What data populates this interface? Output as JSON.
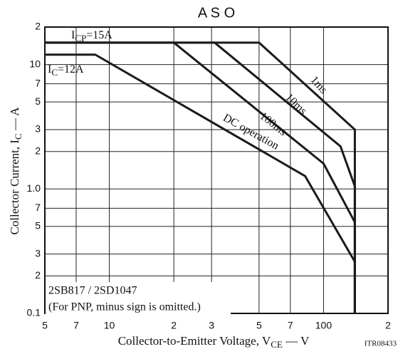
{
  "chart_data": {
    "type": "line",
    "title": "A S O",
    "x_label": [
      "Collector-to-Emitter Voltage, V",
      "CE",
      " — V"
    ],
    "y_label": [
      "Collector Current, I",
      "C",
      " — A"
    ],
    "code": "ITR08433",
    "icp_label": [
      "I",
      "CP",
      "=15A"
    ],
    "ic_label": [
      "I",
      "C",
      "=12A"
    ],
    "notes": [
      "2SB817 / 2SD1047",
      "(For PNP, minus sign is omitted.)"
    ],
    "log_x": true,
    "log_y": true,
    "grid": true,
    "color": "#1a1a1a",
    "xlim": [
      5,
      200
    ],
    "ylim": [
      0.1,
      20
    ],
    "xticks": [
      5,
      7,
      10,
      {
        "value": 20,
        "label": "2"
      },
      {
        "value": 30,
        "label": "3"
      },
      {
        "value": 50,
        "label": "5"
      },
      {
        "value": 70,
        "label": "7"
      },
      100,
      {
        "value": 200,
        "label": "2"
      }
    ],
    "yticks": [
      0.1,
      {
        "value": 0.2,
        "label": "2"
      },
      {
        "value": 0.3,
        "label": "3"
      },
      {
        "value": 0.5,
        "label": "5"
      },
      {
        "value": 0.7,
        "label": "7"
      },
      {
        "value": 1,
        "label": "1.0"
      },
      2,
      3,
      5,
      7,
      10,
      {
        "value": 20,
        "label": "2"
      }
    ],
    "series": [
      {
        "name": "1ms",
        "x": [
          5,
          50,
          140,
          140
        ],
        "values": [
          15,
          15,
          3,
          0.1
        ]
      },
      {
        "name": "10ms",
        "x": [
          5,
          31,
          120,
          140,
          140
        ],
        "values": [
          15,
          15,
          2.2,
          1.05,
          0.1
        ]
      },
      {
        "name": "100ms",
        "x": [
          5,
          20,
          100,
          140,
          140
        ],
        "values": [
          15,
          15,
          1.6,
          0.54,
          0.1
        ]
      },
      {
        "name": "DC operation",
        "x": [
          5,
          8.6,
          82,
          140,
          140
        ],
        "values": [
          12,
          12,
          1.27,
          0.26,
          0.1
        ]
      }
    ]
  }
}
